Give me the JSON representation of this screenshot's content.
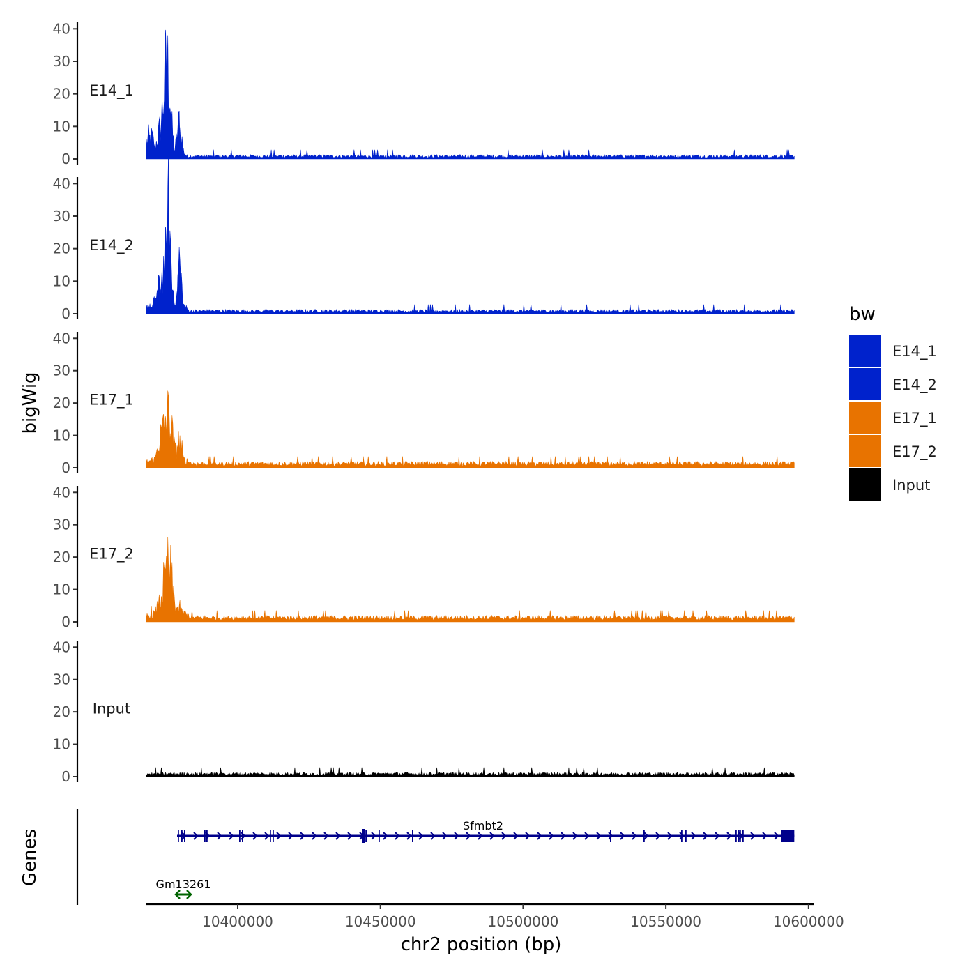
{
  "chart_data": {
    "type": "area",
    "xlabel": "chr2 position (bp)",
    "ylabel": "bigWig",
    "genes_axis_label": "Genes",
    "xlim": [
      10368000,
      10602000
    ],
    "x_ticks": [
      10400000,
      10450000,
      10500000,
      10550000,
      10600000
    ],
    "ylim": [
      0,
      42
    ],
    "y_ticks": [
      0,
      10,
      20,
      30,
      40
    ],
    "grid": false,
    "legend": {
      "title": "bw",
      "placement": "right",
      "entries": [
        {
          "label": "E14_1",
          "color": "#0022cc"
        },
        {
          "label": "E14_2",
          "color": "#0022cc"
        },
        {
          "label": "E17_1",
          "color": "#e87300"
        },
        {
          "label": "E17_2",
          "color": "#e87300"
        },
        {
          "label": "Input",
          "color": "#000000"
        }
      ]
    },
    "tracks": [
      {
        "name": "E14_1",
        "color": "#0022cc",
        "x": [
          10368000,
          10370000,
          10371000,
          10373000,
          10374000,
          10374500,
          10375000,
          10376000,
          10377000,
          10378000,
          10379500,
          10381000,
          10382000,
          10384000,
          10420000,
          10500000,
          10595000
        ],
        "y": [
          6,
          8,
          4,
          12,
          22,
          28,
          37,
          28,
          10,
          3,
          14,
          3,
          1,
          1,
          1,
          1,
          1
        ]
      },
      {
        "name": "E14_2",
        "color": "#0022cc",
        "x": [
          10368000,
          10370000,
          10372000,
          10374000,
          10375000,
          10375800,
          10377000,
          10378500,
          10379500,
          10381000,
          10383000,
          10420000,
          10500000,
          10595000
        ],
        "y": [
          3,
          2,
          8,
          16,
          22,
          40,
          10,
          4,
          20,
          3,
          1,
          1,
          1,
          1
        ]
      },
      {
        "name": "E17_1",
        "color": "#e87300",
        "x": [
          10368000,
          10371000,
          10372500,
          10374000,
          10375000,
          10376000,
          10378000,
          10379500,
          10381000,
          10384000,
          10420000,
          10500000,
          10595000
        ],
        "y": [
          2,
          3,
          10,
          14,
          18,
          20,
          6,
          10,
          3,
          1.5,
          1.5,
          1.5,
          1.5
        ]
      },
      {
        "name": "E17_2",
        "color": "#e87300",
        "x": [
          10368000,
          10371000,
          10373000,
          10374500,
          10375500,
          10376500,
          10378000,
          10379500,
          10381000,
          10384000,
          10420000,
          10500000,
          10595000
        ],
        "y": [
          2,
          3,
          8,
          15,
          20,
          18,
          6,
          4,
          3,
          1.5,
          1.5,
          1.5,
          1.5
        ]
      },
      {
        "name": "Input",
        "color": "#000000",
        "x": [
          10368000,
          10420000,
          10500000,
          10595000
        ],
        "y": [
          1,
          1,
          1,
          1
        ]
      }
    ],
    "genes": [
      {
        "name": "Sfmbt2",
        "start": 10368000,
        "end": 10595000,
        "strand": "+",
        "color": "#00008b"
      },
      {
        "name": "Gm13261",
        "start": 10368000,
        "end": 10375000,
        "strand": "both",
        "color": "#006400"
      }
    ]
  }
}
